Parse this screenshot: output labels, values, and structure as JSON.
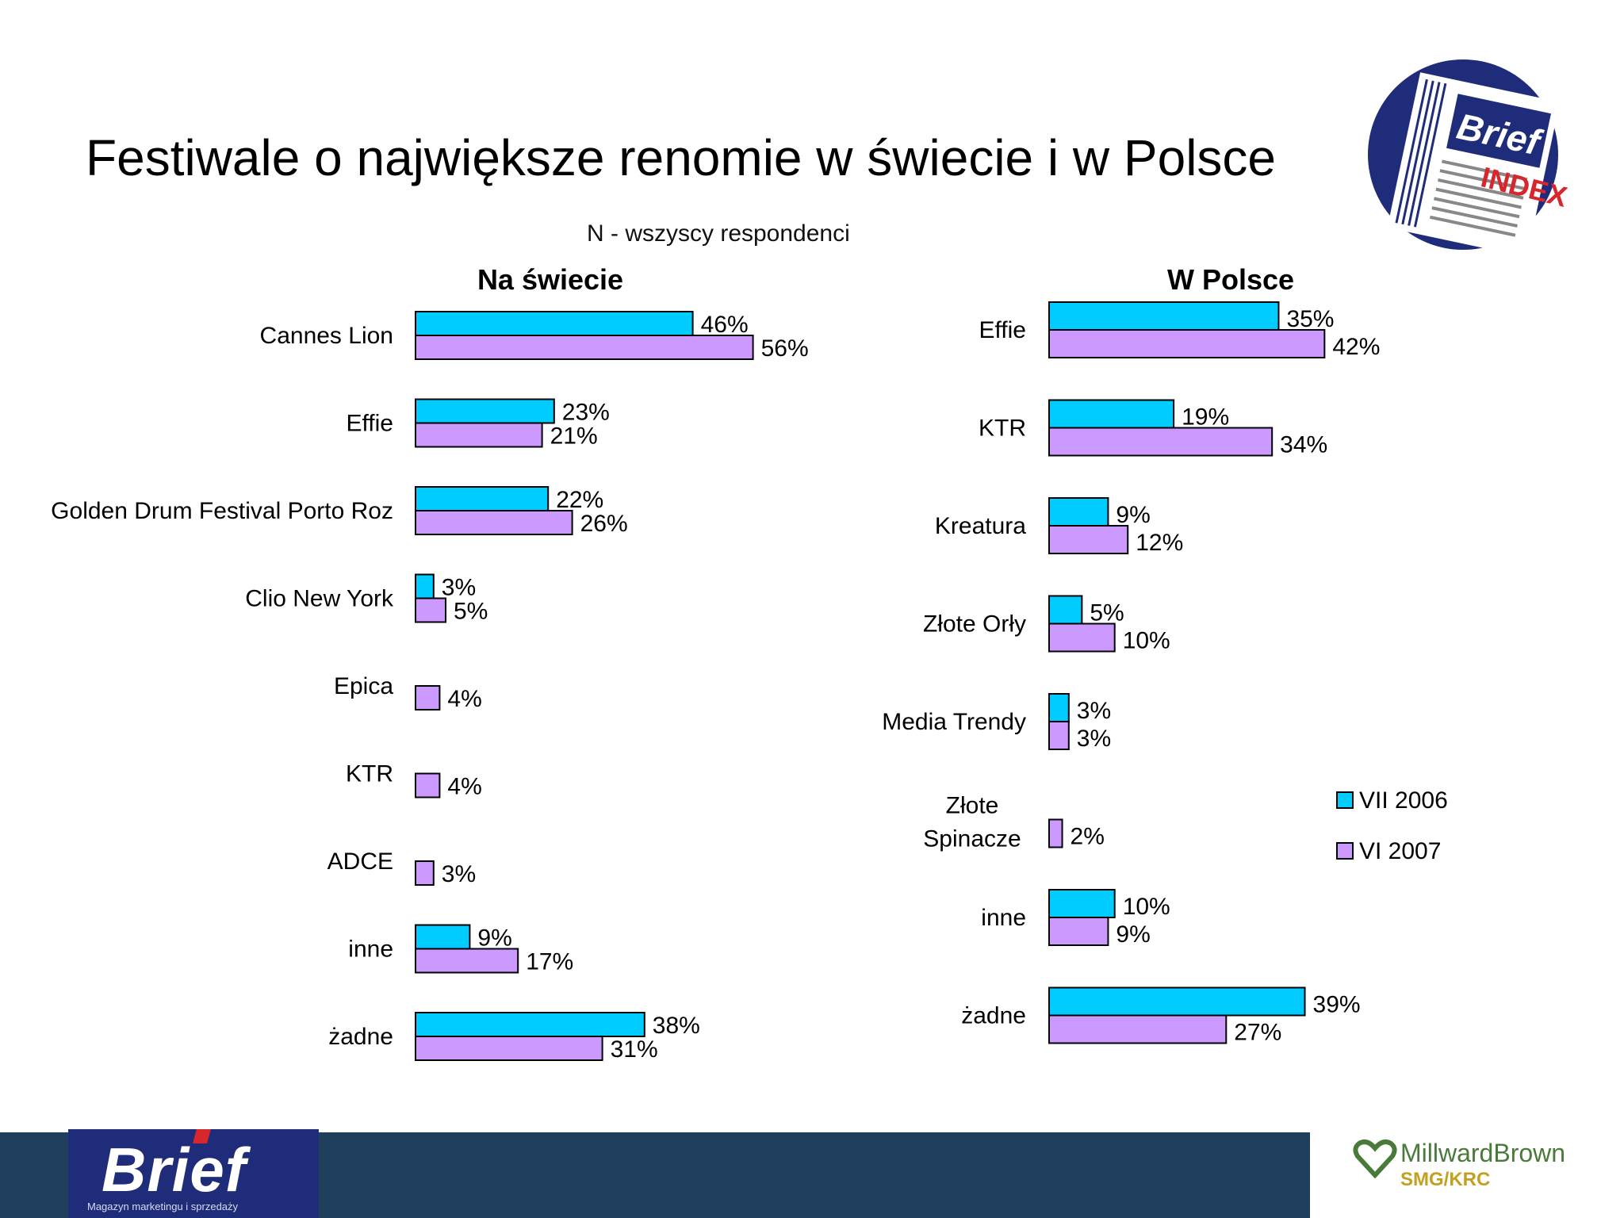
{
  "title": "Festiwale o największe renomie w świecie i w Polsce",
  "subtitle": "N - wszyscy respondenci",
  "colors": {
    "series_2006": "#00ccff",
    "series_2007": "#cc99ff",
    "footer_band": "#1f3f5c",
    "brief_blue": "#1f2c7a"
  },
  "legend": {
    "position": "right",
    "entries": [
      "VII 2006",
      "VI 2007"
    ]
  },
  "logos": {
    "brief_index": {
      "word": "Brief",
      "tag": "INDEX"
    },
    "brief_footer": {
      "word": "Brief",
      "tagline": "Magazyn marketingu i sprzedaży"
    },
    "millward_brown": {
      "name": "MillwardBrown",
      "sub": "SMG/KRC"
    }
  },
  "chart_data": [
    {
      "type": "bar",
      "orientation": "horizontal",
      "title": "Na świecie",
      "categories": [
        "Cannes Lion",
        "Effie",
        "Golden Drum Festival Porto Roz",
        "Clio New York",
        "Epica",
        "KTR",
        "ADCE",
        "inne",
        "żadne"
      ],
      "series": [
        {
          "name": "VII 2006",
          "values": [
            46,
            23,
            22,
            3,
            null,
            null,
            null,
            9,
            38
          ]
        },
        {
          "name": "VI 2007",
          "values": [
            56,
            21,
            26,
            5,
            4,
            4,
            3,
            17,
            31
          ]
        }
      ],
      "value_suffix": "%",
      "grid": false
    },
    {
      "type": "bar",
      "orientation": "horizontal",
      "title": "W Polsce",
      "categories": [
        "Effie",
        "KTR",
        "Kreatura",
        "Złote Orły",
        "Media Trendy",
        "Złote Spinacze",
        "inne",
        "żadne"
      ],
      "series": [
        {
          "name": "VII 2006",
          "values": [
            35,
            19,
            9,
            5,
            3,
            null,
            10,
            39
          ]
        },
        {
          "name": "VI 2007",
          "values": [
            42,
            34,
            12,
            10,
            3,
            2,
            9,
            27
          ]
        }
      ],
      "value_suffix": "%",
      "grid": false
    }
  ]
}
